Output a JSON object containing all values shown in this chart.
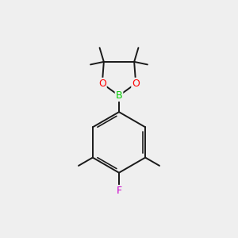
{
  "bg_color": "#efefef",
  "bond_color": "#1a1a1a",
  "bond_width": 1.4,
  "atom_colors": {
    "B": "#00cc00",
    "O": "#ff0000",
    "F": "#cc00cc"
  },
  "figsize": [
    3.0,
    3.0
  ],
  "dpi": 100
}
